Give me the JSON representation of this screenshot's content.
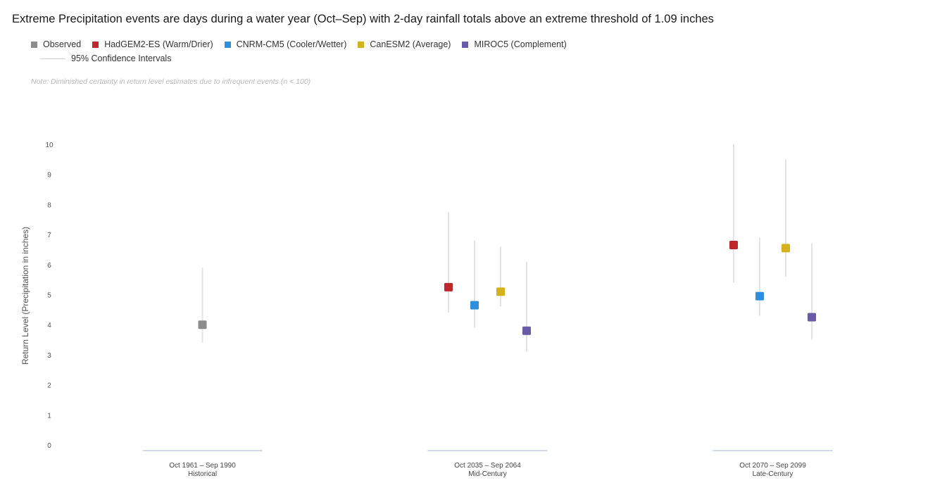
{
  "title": "Extreme Precipitation events are days during a water year (Oct–Sep) with 2-day rainfall totals above an extreme threshold of 1.09 inches",
  "note": "Note: Diminished certainty in return level estimates due to infrequent events (n < 100)",
  "legend": {
    "items": [
      {
        "label": "Observed",
        "color": "#8c8c8c"
      },
      {
        "label": "HadGEM2-ES (Warm/Drier)",
        "color": "#c0272d"
      },
      {
        "label": "CNRM-CM5 (Cooler/Wetter)",
        "color": "#2e8fde"
      },
      {
        "label": "CanESM2 (Average)",
        "color": "#d4b21e"
      },
      {
        "label": "MIROC5 (Complement)",
        "color": "#6a5aa8"
      }
    ],
    "ci_label": "95% Confidence Intervals"
  },
  "chart_data": {
    "type": "scatter",
    "ylabel": "Return Level (Precipitation in inches)",
    "ylim": [
      0,
      10
    ],
    "yticks": [
      0,
      1,
      2,
      3,
      4,
      5,
      6,
      7,
      8,
      9,
      10
    ],
    "grid": false,
    "categories": [
      {
        "label": "Oct 1961 – Sep 1990",
        "sublabel": "Historical"
      },
      {
        "label": "Oct 2035 – Sep 2064",
        "sublabel": "Mid-Century"
      },
      {
        "label": "Oct 2070 – Sep 2099",
        "sublabel": "Late-Century"
      }
    ],
    "series": [
      {
        "name": "Observed",
        "color": "#8c8c8c",
        "values": [
          4.0,
          null,
          null
        ],
        "ci_low": [
          3.4,
          null,
          null
        ],
        "ci_high": [
          5.9,
          null,
          null
        ]
      },
      {
        "name": "HadGEM2-ES (Warm/Drier)",
        "color": "#c0272d",
        "values": [
          null,
          5.25,
          6.65
        ],
        "ci_low": [
          null,
          4.4,
          5.4
        ],
        "ci_high": [
          null,
          7.75,
          10.0
        ]
      },
      {
        "name": "CNRM-CM5 (Cooler/Wetter)",
        "color": "#2e8fde",
        "values": [
          null,
          4.65,
          4.95
        ],
        "ci_low": [
          null,
          3.9,
          4.3
        ],
        "ci_high": [
          null,
          6.8,
          6.9
        ]
      },
      {
        "name": "CanESM2 (Average)",
        "color": "#d4b21e",
        "values": [
          null,
          5.1,
          6.55
        ],
        "ci_low": [
          null,
          4.6,
          5.6
        ],
        "ci_high": [
          null,
          6.6,
          9.5
        ]
      },
      {
        "name": "MIROC5 (Complement)",
        "color": "#6a5aa8",
        "values": [
          null,
          3.8,
          4.25
        ],
        "ci_low": [
          null,
          3.1,
          3.5
        ],
        "ci_high": [
          null,
          6.1,
          6.7
        ]
      }
    ]
  }
}
